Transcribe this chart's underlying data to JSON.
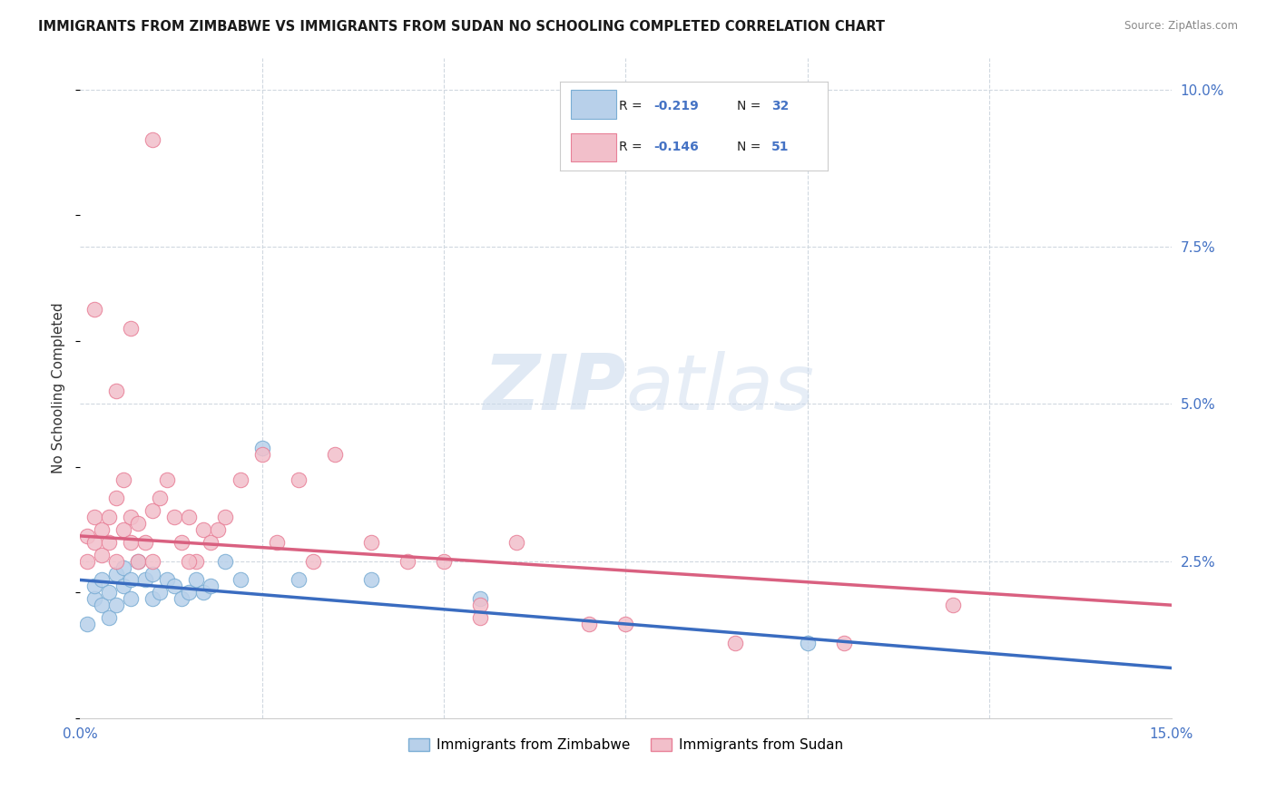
{
  "title": "IMMIGRANTS FROM ZIMBABWE VS IMMIGRANTS FROM SUDAN NO SCHOOLING COMPLETED CORRELATION CHART",
  "source": "Source: ZipAtlas.com",
  "ylabel": "No Schooling Completed",
  "xlim": [
    0,
    0.15
  ],
  "ylim": [
    0,
    0.105
  ],
  "background_color": "#ffffff",
  "grid_color": "#d0d8e0",
  "zimbabwe_color": "#b8d0ea",
  "sudan_color": "#f2bfca",
  "zimbabwe_edge": "#7aadd4",
  "sudan_edge": "#e88098",
  "zimbabwe_line_color": "#3a6cc0",
  "sudan_line_color": "#d96080",
  "legend_label_zimbabwe": "Immigrants from Zimbabwe",
  "legend_label_sudan": "Immigrants from Sudan",
  "watermark_zip": "ZIP",
  "watermark_atlas": "atlas",
  "zimbabwe_x": [
    0.001,
    0.002,
    0.002,
    0.003,
    0.003,
    0.004,
    0.004,
    0.005,
    0.005,
    0.006,
    0.006,
    0.007,
    0.007,
    0.008,
    0.009,
    0.01,
    0.01,
    0.011,
    0.012,
    0.013,
    0.014,
    0.015,
    0.016,
    0.017,
    0.018,
    0.02,
    0.022,
    0.025,
    0.03,
    0.04,
    0.055,
    0.1
  ],
  "zimbabwe_y": [
    0.015,
    0.019,
    0.021,
    0.018,
    0.022,
    0.02,
    0.016,
    0.023,
    0.018,
    0.021,
    0.024,
    0.022,
    0.019,
    0.025,
    0.022,
    0.023,
    0.019,
    0.02,
    0.022,
    0.021,
    0.019,
    0.02,
    0.022,
    0.02,
    0.021,
    0.025,
    0.022,
    0.043,
    0.022,
    0.022,
    0.019,
    0.012
  ],
  "sudan_x": [
    0.001,
    0.001,
    0.002,
    0.002,
    0.003,
    0.003,
    0.004,
    0.004,
    0.005,
    0.005,
    0.006,
    0.006,
    0.007,
    0.007,
    0.008,
    0.008,
    0.009,
    0.01,
    0.01,
    0.011,
    0.012,
    0.013,
    0.014,
    0.015,
    0.016,
    0.017,
    0.018,
    0.019,
    0.02,
    0.022,
    0.025,
    0.027,
    0.03,
    0.032,
    0.035,
    0.04,
    0.045,
    0.05,
    0.055,
    0.06,
    0.07,
    0.075,
    0.09,
    0.105,
    0.12,
    0.002,
    0.005,
    0.007,
    0.01,
    0.015,
    0.055
  ],
  "sudan_y": [
    0.025,
    0.029,
    0.028,
    0.032,
    0.026,
    0.03,
    0.028,
    0.032,
    0.025,
    0.035,
    0.03,
    0.038,
    0.032,
    0.028,
    0.031,
    0.025,
    0.028,
    0.033,
    0.025,
    0.035,
    0.038,
    0.032,
    0.028,
    0.032,
    0.025,
    0.03,
    0.028,
    0.03,
    0.032,
    0.038,
    0.042,
    0.028,
    0.038,
    0.025,
    0.042,
    0.028,
    0.025,
    0.025,
    0.016,
    0.028,
    0.015,
    0.015,
    0.012,
    0.012,
    0.018,
    0.065,
    0.052,
    0.062,
    0.092,
    0.025,
    0.018
  ],
  "trend_zim_start": 0.022,
  "trend_zim_end": 0.008,
  "trend_sud_start": 0.029,
  "trend_sud_end": 0.018
}
